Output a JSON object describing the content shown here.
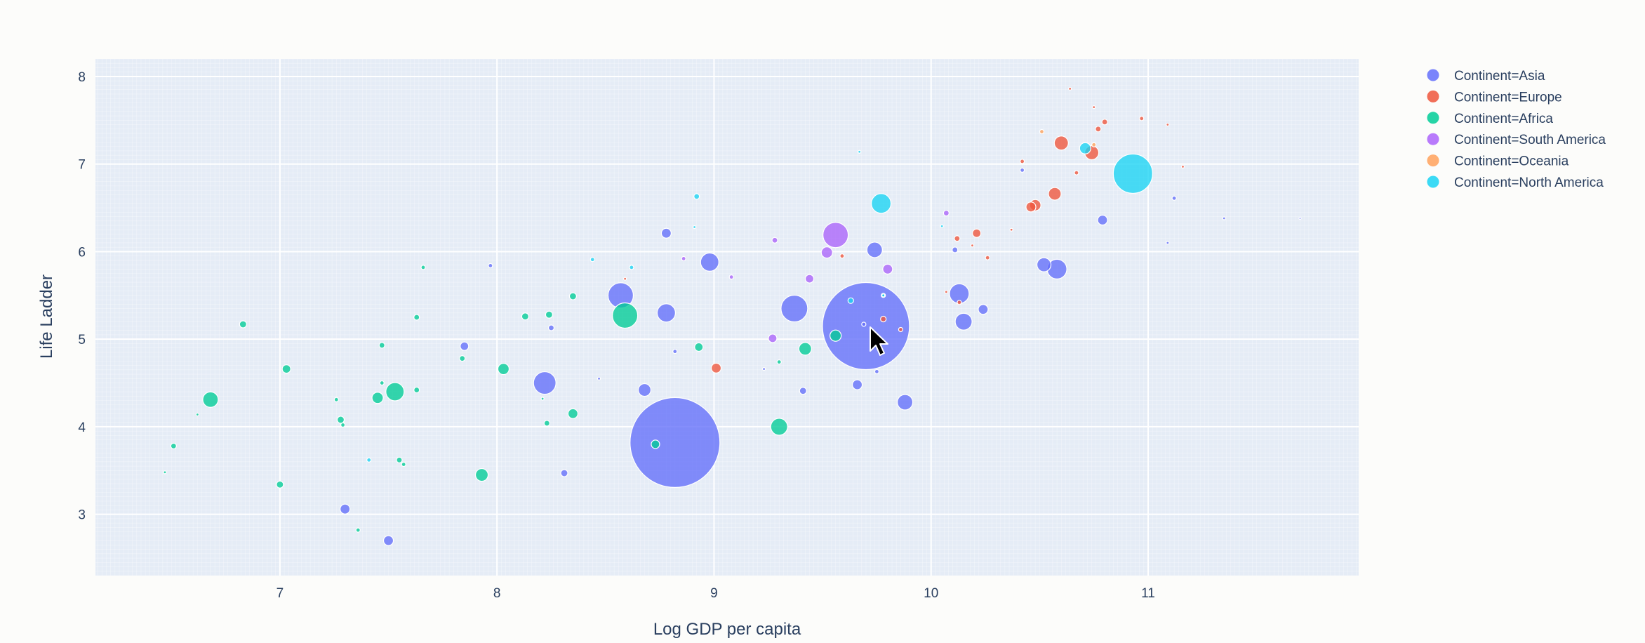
{
  "chart_data": {
    "type": "scatter",
    "title": "",
    "xlabel": "Log GDP per capita",
    "ylabel": "Life Ladder",
    "xlim": [
      6.15,
      11.97
    ],
    "ylim": [
      2.3,
      8.2
    ],
    "x_ticks": [
      7,
      8,
      9,
      10,
      11
    ],
    "y_ticks": [
      3,
      4,
      5,
      6,
      7,
      8
    ],
    "grid": true,
    "legend_position": "top-right",
    "background_color": "#e5ecf6",
    "series": [
      {
        "name": "Continent=Asia",
        "color": "#636efa",
        "points": [
          {
            "x": 8.82,
            "y": 3.82,
            "size": 64
          },
          {
            "x": 9.7,
            "y": 5.15,
            "size": 62
          },
          {
            "x": 9.37,
            "y": 5.35,
            "size": 19
          },
          {
            "x": 8.57,
            "y": 5.5,
            "size": 18
          },
          {
            "x": 8.22,
            "y": 4.5,
            "size": 16
          },
          {
            "x": 10.58,
            "y": 5.8,
            "size": 14
          },
          {
            "x": 10.13,
            "y": 5.52,
            "size": 14
          },
          {
            "x": 8.98,
            "y": 5.88,
            "size": 13
          },
          {
            "x": 8.78,
            "y": 5.3,
            "size": 13
          },
          {
            "x": 9.88,
            "y": 4.28,
            "size": 11
          },
          {
            "x": 10.15,
            "y": 5.2,
            "size": 12
          },
          {
            "x": 9.74,
            "y": 6.02,
            "size": 11
          },
          {
            "x": 10.52,
            "y": 5.85,
            "size": 10
          },
          {
            "x": 8.68,
            "y": 4.42,
            "size": 9
          },
          {
            "x": 10.79,
            "y": 6.36,
            "size": 7
          },
          {
            "x": 10.24,
            "y": 5.34,
            "size": 7
          },
          {
            "x": 9.66,
            "y": 4.48,
            "size": 7
          },
          {
            "x": 8.78,
            "y": 6.21,
            "size": 7
          },
          {
            "x": 7.3,
            "y": 3.06,
            "size": 7
          },
          {
            "x": 7.5,
            "y": 2.7,
            "size": 7
          },
          {
            "x": 7.85,
            "y": 4.92,
            "size": 6
          },
          {
            "x": 8.31,
            "y": 3.47,
            "size": 5
          },
          {
            "x": 9.41,
            "y": 4.41,
            "size": 5
          },
          {
            "x": 8.25,
            "y": 5.13,
            "size": 4
          },
          {
            "x": 10.11,
            "y": 6.02,
            "size": 4
          },
          {
            "x": 11.12,
            "y": 6.61,
            "size": 3
          },
          {
            "x": 11.35,
            "y": 6.38,
            "size": 2
          },
          {
            "x": 11.7,
            "y": 6.38,
            "size": 1.5
          },
          {
            "x": 11.09,
            "y": 6.1,
            "size": 2
          },
          {
            "x": 7.97,
            "y": 5.84,
            "size": 3
          },
          {
            "x": 8.82,
            "y": 4.86,
            "size": 3
          },
          {
            "x": 8.47,
            "y": 4.55,
            "size": 2
          },
          {
            "x": 9.23,
            "y": 4.66,
            "size": 2
          },
          {
            "x": 10.42,
            "y": 6.93,
            "size": 3
          },
          {
            "x": 9.75,
            "y": 4.63,
            "size": 3
          },
          {
            "x": 9.69,
            "y": 5.17,
            "size": 3
          }
        ]
      },
      {
        "name": "Continent=Europe",
        "color": "#ef553b",
        "points": [
          {
            "x": 10.6,
            "y": 7.24,
            "size": 10
          },
          {
            "x": 10.74,
            "y": 7.13,
            "size": 10
          },
          {
            "x": 10.57,
            "y": 6.66,
            "size": 9
          },
          {
            "x": 10.48,
            "y": 6.53,
            "size": 8
          },
          {
            "x": 10.46,
            "y": 6.51,
            "size": 7
          },
          {
            "x": 9.01,
            "y": 4.67,
            "size": 7
          },
          {
            "x": 10.21,
            "y": 6.21,
            "size": 6
          },
          {
            "x": 10.8,
            "y": 7.48,
            "size": 4
          },
          {
            "x": 10.77,
            "y": 7.4,
            "size": 4
          },
          {
            "x": 10.42,
            "y": 7.03,
            "size": 3
          },
          {
            "x": 10.12,
            "y": 6.15,
            "size": 4
          },
          {
            "x": 10.26,
            "y": 5.93,
            "size": 3
          },
          {
            "x": 9.78,
            "y": 5.23,
            "size": 4
          },
          {
            "x": 9.86,
            "y": 5.11,
            "size": 3
          },
          {
            "x": 10.13,
            "y": 5.42,
            "size": 3
          },
          {
            "x": 10.67,
            "y": 6.9,
            "size": 3
          },
          {
            "x": 10.97,
            "y": 7.52,
            "size": 3
          },
          {
            "x": 10.75,
            "y": 7.65,
            "size": 2
          },
          {
            "x": 10.64,
            "y": 7.86,
            "size": 2
          },
          {
            "x": 11.09,
            "y": 7.45,
            "size": 2
          },
          {
            "x": 11.16,
            "y": 6.97,
            "size": 2
          },
          {
            "x": 10.19,
            "y": 6.07,
            "size": 2
          },
          {
            "x": 9.59,
            "y": 5.95,
            "size": 3
          },
          {
            "x": 10.37,
            "y": 6.25,
            "size": 2
          },
          {
            "x": 10.07,
            "y": 5.54,
            "size": 2
          },
          {
            "x": 8.59,
            "y": 5.69,
            "size": 2
          }
        ]
      },
      {
        "name": "Continent=Africa",
        "color": "#00cc96",
        "points": [
          {
            "x": 8.59,
            "y": 5.27,
            "size": 18
          },
          {
            "x": 7.53,
            "y": 4.4,
            "size": 13
          },
          {
            "x": 6.68,
            "y": 4.31,
            "size": 11
          },
          {
            "x": 9.3,
            "y": 4.0,
            "size": 12
          },
          {
            "x": 7.93,
            "y": 3.45,
            "size": 9
          },
          {
            "x": 8.03,
            "y": 4.66,
            "size": 8
          },
          {
            "x": 7.45,
            "y": 4.33,
            "size": 8
          },
          {
            "x": 9.42,
            "y": 4.89,
            "size": 9
          },
          {
            "x": 9.56,
            "y": 5.04,
            "size": 8
          },
          {
            "x": 8.35,
            "y": 4.15,
            "size": 7
          },
          {
            "x": 8.93,
            "y": 4.91,
            "size": 6
          },
          {
            "x": 7.03,
            "y": 4.66,
            "size": 6
          },
          {
            "x": 6.83,
            "y": 5.17,
            "size": 5
          },
          {
            "x": 8.35,
            "y": 5.49,
            "size": 5
          },
          {
            "x": 8.13,
            "y": 5.26,
            "size": 5
          },
          {
            "x": 8.24,
            "y": 5.28,
            "size": 5
          },
          {
            "x": 8.73,
            "y": 3.8,
            "size": 6
          },
          {
            "x": 7.28,
            "y": 4.08,
            "size": 5
          },
          {
            "x": 7.0,
            "y": 3.34,
            "size": 5
          },
          {
            "x": 7.47,
            "y": 4.93,
            "size": 4
          },
          {
            "x": 7.63,
            "y": 4.42,
            "size": 4
          },
          {
            "x": 8.23,
            "y": 4.04,
            "size": 4
          },
          {
            "x": 7.55,
            "y": 3.62,
            "size": 4
          },
          {
            "x": 7.84,
            "y": 4.78,
            "size": 4
          },
          {
            "x": 7.63,
            "y": 5.25,
            "size": 4
          },
          {
            "x": 6.51,
            "y": 3.78,
            "size": 4
          },
          {
            "x": 7.36,
            "y": 2.82,
            "size": 3
          },
          {
            "x": 7.47,
            "y": 4.5,
            "size": 3
          },
          {
            "x": 9.3,
            "y": 4.74,
            "size": 3
          },
          {
            "x": 7.66,
            "y": 5.82,
            "size": 3
          },
          {
            "x": 7.26,
            "y": 4.31,
            "size": 3
          },
          {
            "x": 6.62,
            "y": 4.14,
            "size": 2
          },
          {
            "x": 7.57,
            "y": 3.57,
            "size": 3
          },
          {
            "x": 7.29,
            "y": 4.02,
            "size": 3
          },
          {
            "x": 6.47,
            "y": 3.48,
            "size": 2
          },
          {
            "x": 8.21,
            "y": 4.32,
            "size": 2
          },
          {
            "x": 9.78,
            "y": 5.5,
            "size": 3
          }
        ]
      },
      {
        "name": "Continent=South America",
        "color": "#ab63fa",
        "points": [
          {
            "x": 9.56,
            "y": 6.19,
            "size": 18
          },
          {
            "x": 9.52,
            "y": 5.99,
            "size": 8
          },
          {
            "x": 9.8,
            "y": 5.8,
            "size": 7
          },
          {
            "x": 9.44,
            "y": 5.69,
            "size": 6
          },
          {
            "x": 9.27,
            "y": 5.01,
            "size": 6
          },
          {
            "x": 9.28,
            "y": 6.13,
            "size": 4
          },
          {
            "x": 10.07,
            "y": 6.44,
            "size": 4
          },
          {
            "x": 8.86,
            "y": 5.92,
            "size": 3
          },
          {
            "x": 9.08,
            "y": 5.71,
            "size": 3
          }
        ]
      },
      {
        "name": "Continent=Oceania",
        "color": "#ffa15a",
        "points": [
          {
            "x": 10.51,
            "y": 7.37,
            "size": 3
          },
          {
            "x": 10.75,
            "y": 7.22,
            "size": 3
          }
        ]
      },
      {
        "name": "Continent=North America",
        "color": "#19d3f3",
        "points": [
          {
            "x": 10.93,
            "y": 6.89,
            "size": 28
          },
          {
            "x": 9.77,
            "y": 6.55,
            "size": 14
          },
          {
            "x": 10.71,
            "y": 7.18,
            "size": 8
          },
          {
            "x": 8.92,
            "y": 6.63,
            "size": 4
          },
          {
            "x": 9.63,
            "y": 5.44,
            "size": 4
          },
          {
            "x": 7.41,
            "y": 3.62,
            "size": 3
          },
          {
            "x": 8.62,
            "y": 5.82,
            "size": 3
          },
          {
            "x": 8.44,
            "y": 5.91,
            "size": 3
          },
          {
            "x": 9.67,
            "y": 7.14,
            "size": 2
          },
          {
            "x": 8.91,
            "y": 6.28,
            "size": 2
          },
          {
            "x": 10.05,
            "y": 6.29,
            "size": 2
          },
          {
            "x": 9.78,
            "y": 5.5,
            "size": 2
          }
        ]
      }
    ]
  }
}
